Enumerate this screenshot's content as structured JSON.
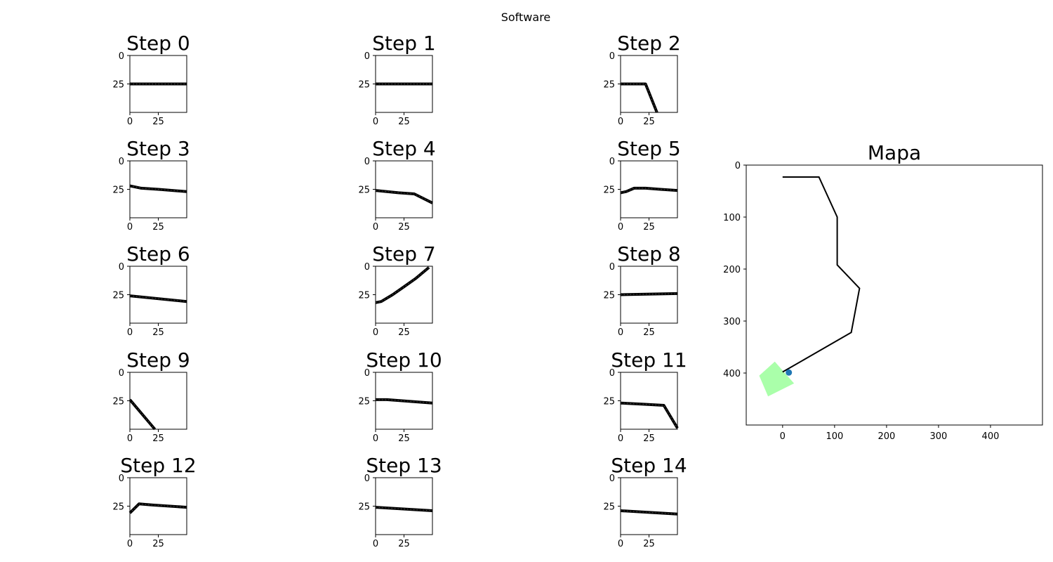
{
  "figure": {
    "title": "Software"
  },
  "chart_data": [
    {
      "type": "line",
      "title": "Step 0",
      "xticks": [
        "0",
        "25"
      ],
      "yticks": [
        "0",
        "25"
      ],
      "xlim": [
        0,
        50
      ],
      "ylim": [
        50,
        0
      ],
      "series": [
        {
          "x": [
            0,
            50
          ],
          "y": [
            25,
            25
          ]
        }
      ]
    },
    {
      "type": "line",
      "title": "Step 1",
      "xticks": [
        "0",
        "25"
      ],
      "yticks": [
        "0",
        "25"
      ],
      "xlim": [
        0,
        50
      ],
      "ylim": [
        50,
        0
      ],
      "series": [
        {
          "x": [
            0,
            50
          ],
          "y": [
            25,
            25
          ]
        }
      ]
    },
    {
      "type": "line",
      "title": "Step 2",
      "xticks": [
        "0",
        "25"
      ],
      "yticks": [
        "0",
        "25"
      ],
      "xlim": [
        0,
        50
      ],
      "ylim": [
        50,
        0
      ],
      "series": [
        {
          "x": [
            0,
            22,
            32
          ],
          "y": [
            25,
            25,
            50
          ]
        }
      ]
    },
    {
      "type": "line",
      "title": "Step 3",
      "xticks": [
        "0",
        "25"
      ],
      "yticks": [
        "0",
        "25"
      ],
      "xlim": [
        0,
        50
      ],
      "ylim": [
        50,
        0
      ],
      "series": [
        {
          "x": [
            0,
            10,
            25,
            50
          ],
          "y": [
            22,
            24,
            25,
            27
          ]
        }
      ]
    },
    {
      "type": "line",
      "title": "Step 4",
      "xticks": [
        "0",
        "25"
      ],
      "yticks": [
        "0",
        "25"
      ],
      "xlim": [
        0,
        50
      ],
      "ylim": [
        50,
        0
      ],
      "series": [
        {
          "x": [
            0,
            10,
            20,
            34,
            50
          ],
          "y": [
            26,
            27,
            28,
            29,
            37
          ]
        }
      ]
    },
    {
      "type": "line",
      "title": "Step 5",
      "xticks": [
        "0",
        "25"
      ],
      "yticks": [
        "0",
        "25"
      ],
      "xlim": [
        0,
        50
      ],
      "ylim": [
        50,
        0
      ],
      "series": [
        {
          "x": [
            0,
            5,
            12,
            22,
            35,
            50
          ],
          "y": [
            28,
            27,
            24,
            24,
            25,
            26
          ]
        }
      ]
    },
    {
      "type": "line",
      "title": "Step 6",
      "xticks": [
        "0",
        "25"
      ],
      "yticks": [
        "0",
        "25"
      ],
      "xlim": [
        0,
        50
      ],
      "ylim": [
        50,
        0
      ],
      "series": [
        {
          "x": [
            0,
            50
          ],
          "y": [
            26,
            31
          ]
        }
      ]
    },
    {
      "type": "line",
      "title": "Step 7",
      "xticks": [
        "0",
        "25"
      ],
      "yticks": [
        "0",
        "25"
      ],
      "xlim": [
        0,
        50
      ],
      "ylim": [
        50,
        0
      ],
      "series": [
        {
          "x": [
            0,
            5,
            15,
            25,
            35,
            47
          ],
          "y": [
            32,
            31,
            25,
            18,
            11,
            1
          ]
        }
      ]
    },
    {
      "type": "line",
      "title": "Step 8",
      "xticks": [
        "0",
        "25"
      ],
      "yticks": [
        "0",
        "25"
      ],
      "xlim": [
        0,
        50
      ],
      "ylim": [
        50,
        0
      ],
      "series": [
        {
          "x": [
            0,
            50
          ],
          "y": [
            25,
            24
          ]
        }
      ]
    },
    {
      "type": "line",
      "title": "Step 9",
      "xticks": [
        "0",
        "25"
      ],
      "yticks": [
        "0",
        "25"
      ],
      "xlim": [
        0,
        50
      ],
      "ylim": [
        50,
        0
      ],
      "series": [
        {
          "x": [
            0,
            22
          ],
          "y": [
            24,
            50
          ]
        }
      ]
    },
    {
      "type": "line",
      "title": "Step 10",
      "xticks": [
        "0",
        "25"
      ],
      "yticks": [
        "0",
        "25"
      ],
      "xlim": [
        0,
        50
      ],
      "ylim": [
        50,
        0
      ],
      "series": [
        {
          "x": [
            0,
            10,
            50
          ],
          "y": [
            24,
            24,
            27
          ]
        }
      ]
    },
    {
      "type": "line",
      "title": "Step 11",
      "xticks": [
        "0",
        "25"
      ],
      "yticks": [
        "0",
        "25"
      ],
      "xlim": [
        0,
        50
      ],
      "ylim": [
        50,
        0
      ],
      "series": [
        {
          "x": [
            0,
            20,
            38,
            50
          ],
          "y": [
            27,
            28,
            29,
            49
          ]
        }
      ]
    },
    {
      "type": "line",
      "title": "Step 12",
      "xticks": [
        "0",
        "25"
      ],
      "yticks": [
        "0",
        "25"
      ],
      "xlim": [
        0,
        50
      ],
      "ylim": [
        50,
        0
      ],
      "series": [
        {
          "x": [
            0,
            8,
            20,
            50
          ],
          "y": [
            31,
            23,
            24,
            26
          ]
        }
      ]
    },
    {
      "type": "line",
      "title": "Step 13",
      "xticks": [
        "0",
        "25"
      ],
      "yticks": [
        "0",
        "25"
      ],
      "xlim": [
        0,
        50
      ],
      "ylim": [
        50,
        0
      ],
      "series": [
        {
          "x": [
            0,
            50
          ],
          "y": [
            26,
            29
          ]
        }
      ]
    },
    {
      "type": "line",
      "title": "Step 14",
      "xticks": [
        "0",
        "25"
      ],
      "yticks": [
        "0",
        "25"
      ],
      "xlim": [
        0,
        50
      ],
      "ylim": [
        50,
        0
      ],
      "series": [
        {
          "x": [
            0,
            50
          ],
          "y": [
            29,
            32
          ]
        }
      ]
    },
    {
      "type": "line",
      "title": "Mapa",
      "xlim": [
        -70,
        500
      ],
      "ylim": [
        500,
        0
      ],
      "xticks": [
        0,
        100,
        200,
        300,
        400
      ],
      "yticks": [
        0,
        100,
        200,
        300,
        400
      ],
      "path": {
        "x": [
          0,
          70,
          105,
          105,
          148,
          132,
          0
        ],
        "y": [
          23,
          23,
          100,
          192,
          237,
          322,
          398
        ],
        "color": "#000000"
      },
      "point": {
        "x": 12,
        "y": 399,
        "color": "#1f77b4"
      },
      "region": {
        "x": [
          -45,
          -15,
          22,
          -28
        ],
        "y": [
          405,
          378,
          420,
          445
        ],
        "color": "#aaffaa"
      }
    }
  ]
}
